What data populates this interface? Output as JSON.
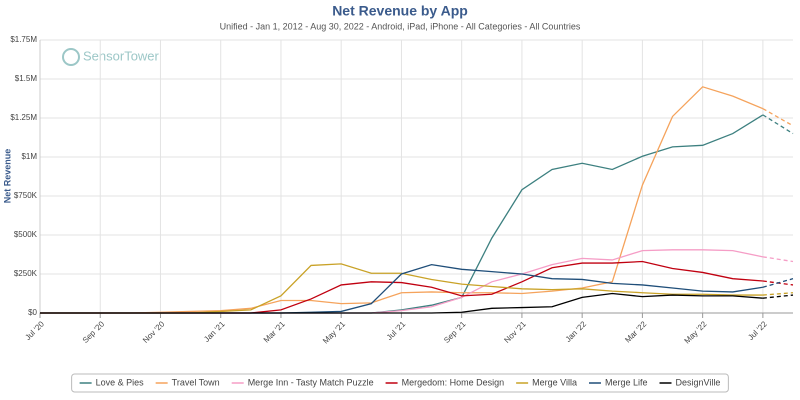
{
  "chart_data": {
    "type": "line",
    "title": "Net Revenue by App",
    "subtitle": "Unified - Jan 1, 2012 - Aug 30, 2022 - Android, iPad, iPhone - All Categories - All Countries",
    "y_label": "Net Revenue",
    "watermark": "SensorTower",
    "categories": [
      "Jul '20",
      null,
      "Sep '20",
      null,
      "Nov '20",
      null,
      "Jan '21",
      null,
      "Mar '21",
      null,
      "May '21",
      null,
      "Jul '21",
      null,
      "Sep '21",
      null,
      "Nov '21",
      null,
      "Jan '22",
      null,
      "Mar '22",
      null,
      "May '22",
      null,
      "Jul '22",
      null
    ],
    "ylim": [
      0,
      1750000
    ],
    "yticks": [
      {
        "value": 0,
        "label": "$0"
      },
      {
        "value": 250000,
        "label": "$250K"
      },
      {
        "value": 500000,
        "label": "$500K"
      },
      {
        "value": 750000,
        "label": "$750K"
      },
      {
        "value": 1000000,
        "label": "$1M"
      },
      {
        "value": 1250000,
        "label": "$1.25M"
      },
      {
        "value": 1500000,
        "label": "$1.5M"
      },
      {
        "value": 1750000,
        "label": "$1.75M"
      }
    ],
    "grid": true,
    "legend": "bottom",
    "dashed_last_segment": true,
    "series": [
      {
        "name": "Love & Pies",
        "color": "#3d8080",
        "values": [
          0,
          0,
          0,
          0,
          0,
          0,
          0,
          0,
          0,
          0,
          0,
          0,
          20000,
          50000,
          100000,
          480000,
          790000,
          920000,
          960000,
          920000,
          1005000,
          1065000,
          1075000,
          1150000,
          1270000,
          1150000
        ]
      },
      {
        "name": "Travel Town",
        "color": "#f5a35c",
        "values": [
          0,
          0,
          0,
          0,
          5000,
          10000,
          15000,
          30000,
          80000,
          80000,
          60000,
          65000,
          130000,
          135000,
          130000,
          130000,
          125000,
          140000,
          160000,
          200000,
          820000,
          1260000,
          1450000,
          1390000,
          1310000,
          1200000
        ]
      },
      {
        "name": "Merge Inn - Tasty Match Puzzle",
        "color": "#f59dc6",
        "values": [
          0,
          0,
          0,
          0,
          0,
          0,
          0,
          0,
          0,
          0,
          0,
          0,
          15000,
          40000,
          100000,
          200000,
          250000,
          310000,
          350000,
          340000,
          400000,
          405000,
          405000,
          400000,
          360000,
          330000
        ]
      },
      {
        "name": "Mergedom: Home Design",
        "color": "#c00010",
        "values": [
          0,
          0,
          0,
          0,
          0,
          0,
          0,
          0,
          20000,
          90000,
          180000,
          200000,
          195000,
          165000,
          110000,
          120000,
          200000,
          290000,
          320000,
          320000,
          330000,
          285000,
          260000,
          220000,
          205000,
          180000
        ]
      },
      {
        "name": "Merge Villa",
        "color": "#c9a227",
        "values": [
          0,
          0,
          0,
          0,
          0,
          0,
          10000,
          20000,
          110000,
          305000,
          315000,
          255000,
          255000,
          215000,
          185000,
          170000,
          155000,
          150000,
          155000,
          140000,
          130000,
          120000,
          120000,
          115000,
          115000,
          130000
        ]
      },
      {
        "name": "Merge Life",
        "color": "#1f4e79",
        "values": [
          0,
          0,
          0,
          0,
          0,
          0,
          0,
          0,
          0,
          5000,
          10000,
          60000,
          250000,
          310000,
          280000,
          265000,
          250000,
          220000,
          215000,
          190000,
          180000,
          160000,
          140000,
          135000,
          165000,
          220000
        ]
      },
      {
        "name": "DesignVille",
        "color": "#000000",
        "values": [
          0,
          0,
          0,
          0,
          0,
          0,
          0,
          0,
          0,
          0,
          0,
          0,
          0,
          0,
          5000,
          30000,
          35000,
          40000,
          100000,
          125000,
          105000,
          115000,
          110000,
          110000,
          95000,
          115000
        ]
      }
    ]
  }
}
